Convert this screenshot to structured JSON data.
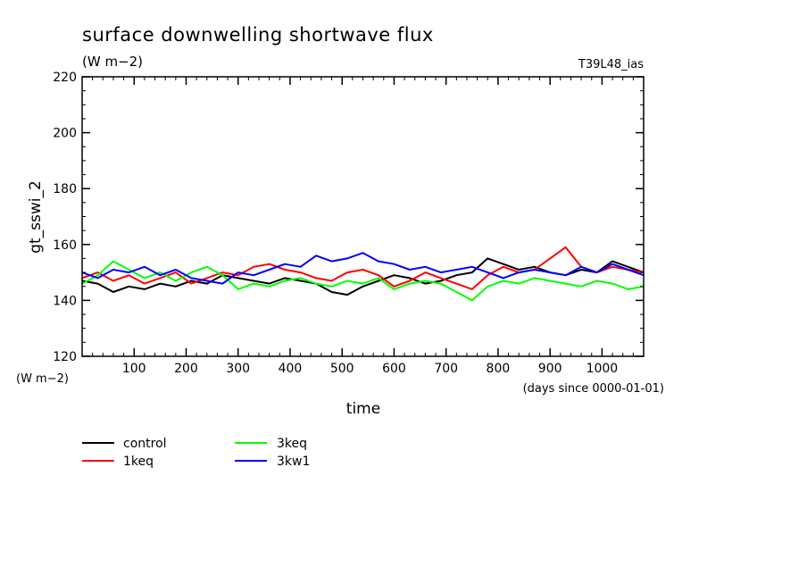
{
  "header": {
    "title": "surface downwelling shortwave flux",
    "units": "(W m−2)",
    "run_id": "T39L48_ias"
  },
  "axes": {
    "ylabel": "gt_sswi_2",
    "yunits": "(W m−2)",
    "xlabel": "time",
    "xunits": "(days since 0000-01-01)"
  },
  "chart_data": {
    "type": "line",
    "title": "surface downwelling shortwave flux",
    "xlabel": "time",
    "ylabel": "gt_sswi_2",
    "xlim": [
      0,
      1080
    ],
    "ylim": [
      120,
      220
    ],
    "xticks": [
      100,
      200,
      300,
      400,
      500,
      600,
      700,
      800,
      900,
      1000
    ],
    "yticks": [
      120,
      140,
      160,
      180,
      200,
      220
    ],
    "x": [
      0,
      30,
      60,
      90,
      120,
      150,
      180,
      210,
      240,
      270,
      300,
      330,
      360,
      390,
      420,
      450,
      480,
      510,
      540,
      570,
      600,
      630,
      660,
      690,
      720,
      750,
      780,
      810,
      840,
      870,
      900,
      930,
      960,
      990,
      1020,
      1050,
      1080
    ],
    "series": [
      {
        "name": "control",
        "color": "#000000",
        "values": [
          147,
          146,
          143,
          145,
          144,
          146,
          145,
          147,
          146,
          149,
          148,
          147,
          146,
          148,
          147,
          146,
          143,
          142,
          145,
          147,
          149,
          148,
          146,
          147,
          149,
          150,
          155,
          153,
          151,
          152,
          150,
          149,
          151,
          150,
          154,
          152,
          150
        ]
      },
      {
        "name": "1keq",
        "color": "#ff0000",
        "values": [
          148,
          150,
          147,
          149,
          146,
          148,
          150,
          146,
          148,
          150,
          149,
          152,
          153,
          151,
          150,
          148,
          147,
          150,
          151,
          149,
          145,
          147,
          150,
          148,
          146,
          144,
          149,
          152,
          150,
          151,
          155,
          159,
          152,
          150,
          152,
          151,
          150
        ]
      },
      {
        "name": "3keq",
        "color": "#00ff00",
        "values": [
          146,
          149,
          154,
          151,
          148,
          150,
          147,
          150,
          152,
          149,
          144,
          146,
          145,
          147,
          148,
          146,
          145,
          147,
          146,
          148,
          144,
          146,
          147,
          146,
          143,
          140,
          145,
          147,
          146,
          148,
          147,
          146,
          145,
          147,
          146,
          144,
          145
        ]
      },
      {
        "name": "3kw1",
        "color": "#0000ff",
        "values": [
          150,
          148,
          151,
          150,
          152,
          149,
          151,
          148,
          147,
          146,
          150,
          149,
          151,
          153,
          152,
          156,
          154,
          155,
          157,
          154,
          153,
          151,
          152,
          150,
          151,
          152,
          150,
          148,
          150,
          151,
          150,
          149,
          152,
          150,
          153,
          151,
          149
        ]
      }
    ]
  },
  "legend": [
    {
      "label": "control",
      "color": "#000000"
    },
    {
      "label": "1keq",
      "color": "#ff0000"
    },
    {
      "label": "3keq",
      "color": "#00ff00"
    },
    {
      "label": "3kw1",
      "color": "#0000ff"
    }
  ]
}
